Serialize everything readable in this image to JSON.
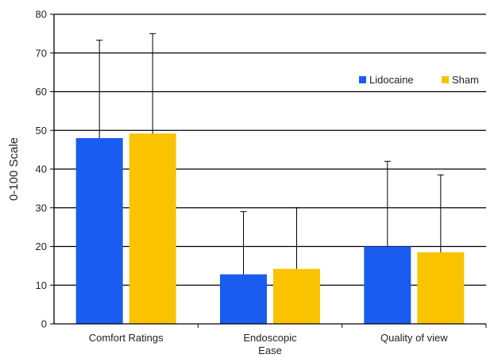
{
  "chart_data": {
    "type": "bar",
    "ylabel": "0-100 Scale",
    "ylim": [
      0,
      80
    ],
    "yticks": [
      0,
      10,
      20,
      30,
      40,
      50,
      60,
      70,
      80
    ],
    "grid": true,
    "legend_position": "top-right",
    "categories": [
      [
        "Comfort Ratings"
      ],
      [
        "Endoscopic",
        "Ease"
      ],
      [
        "Quality of view"
      ]
    ],
    "series": [
      {
        "name": "Lidocaine",
        "color": "#1a5cf0",
        "values": [
          48,
          12.8,
          20
        ],
        "error_upper": [
          73.3,
          29,
          42
        ]
      },
      {
        "name": "Sham",
        "color": "#f9c300",
        "values": [
          49.2,
          14.2,
          18.5
        ],
        "error_upper": [
          75,
          30,
          38.5
        ]
      }
    ]
  }
}
